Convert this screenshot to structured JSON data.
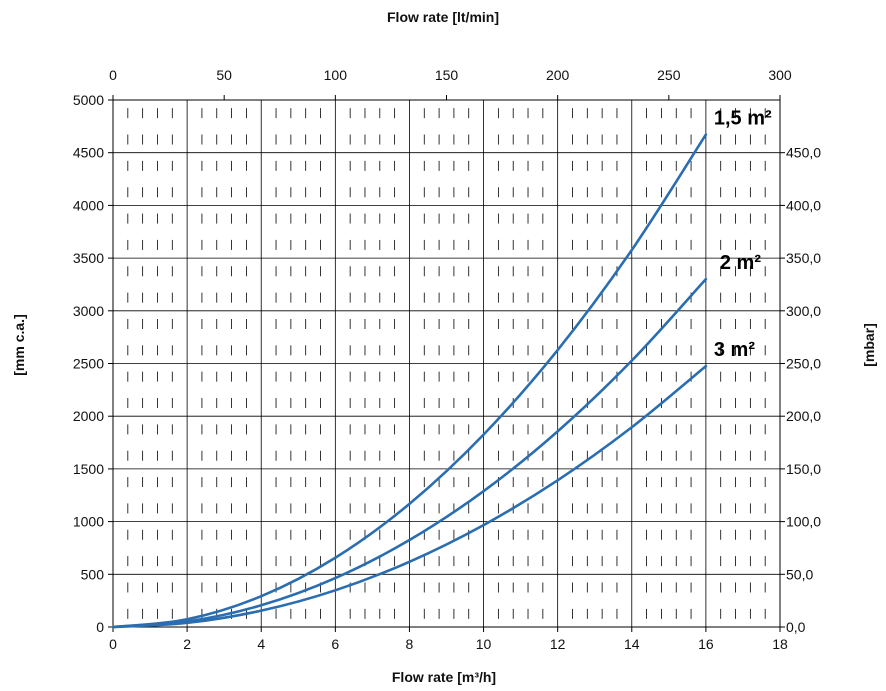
{
  "chart_data": {
    "type": "line",
    "title": "",
    "x_label_bottom": "Flow rate [m³/h]",
    "x_label_top": "Flow rate [lt/min]",
    "y_label_left": "[mm c.a.]",
    "y_label_right": "[mbar]",
    "x_range": [
      0,
      18
    ],
    "x_top_range": [
      0,
      300
    ],
    "y_range": [
      0,
      5000
    ],
    "y_right_range": [
      0,
      500
    ],
    "x_ticks": [
      "0",
      "2",
      "4",
      "6",
      "8",
      "10",
      "12",
      "14",
      "16",
      "18"
    ],
    "x_top_ticks": [
      "0",
      "50",
      "100",
      "150",
      "200",
      "250",
      "300"
    ],
    "y_ticks": [
      "0",
      "500",
      "1000",
      "1500",
      "2000",
      "2500",
      "3000",
      "3500",
      "4000",
      "4500",
      "5000"
    ],
    "y_right_ticks": [
      "0,0",
      "50,0",
      "100,0",
      "150,0",
      "200,0",
      "250,0",
      "300,0",
      "350,0",
      "400,0",
      "450,0"
    ],
    "grid": true,
    "series_color": "#2a6db0",
    "series": [
      {
        "name": "1,5 m²",
        "x": [
          0,
          2,
          4,
          6,
          8,
          10,
          12,
          14,
          16
        ],
        "y": [
          0,
          73,
          292,
          657,
          1168,
          1825,
          2628,
          3577,
          4672
        ]
      },
      {
        "name": "2 m²",
        "x": [
          0,
          2,
          4,
          6,
          8,
          10,
          12,
          14,
          16
        ],
        "y": [
          0,
          52,
          206,
          464,
          825,
          1289,
          1856,
          2527,
          3300
        ]
      },
      {
        "name": "3 m²",
        "x": [
          0,
          2,
          4,
          6,
          8,
          10,
          12,
          14,
          16
        ],
        "y": [
          0,
          39,
          155,
          348,
          619,
          967,
          1392,
          1895,
          2475
        ]
      }
    ]
  }
}
